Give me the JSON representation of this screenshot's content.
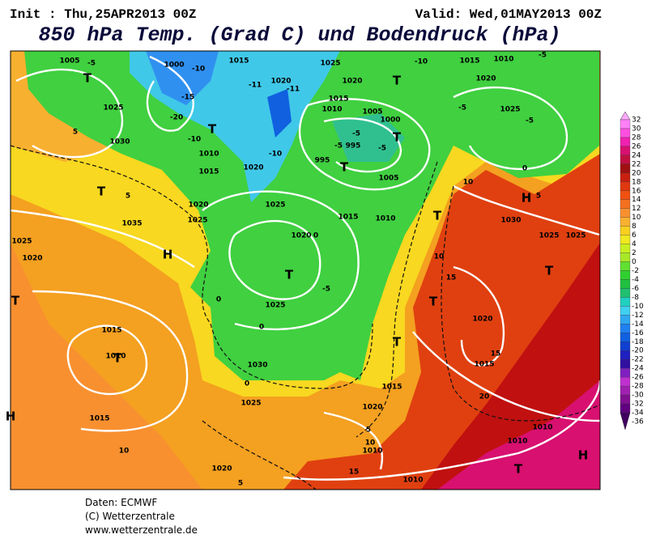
{
  "header": {
    "init": "Init : Thu,25APR2013 00Z",
    "valid": "Valid: Wed,01MAY2013 00Z",
    "title": "850 hPa Temp. (Grad C) und Bodendruck (hPa)"
  },
  "colorbar": {
    "levels": [
      32,
      30,
      28,
      26,
      24,
      22,
      20,
      18,
      16,
      14,
      12,
      10,
      8,
      6,
      4,
      2,
      0,
      -2,
      -4,
      -6,
      -8,
      -10,
      -12,
      -14,
      -16,
      -18,
      -20,
      -22,
      -24,
      -26,
      -28,
      -30,
      -32,
      -34,
      -36
    ],
    "colors": [
      "#ffa8ff",
      "#ff80f8",
      "#ff50e0",
      "#f020b0",
      "#d81070",
      "#c01040",
      "#a01010",
      "#c82010",
      "#e03810",
      "#f05010",
      "#f47020",
      "#f89030",
      "#f8b030",
      "#f8d020",
      "#f0e820",
      "#c8f020",
      "#a8e828",
      "#60e030",
      "#30d030",
      "#20c040",
      "#20c070",
      "#20d0c0",
      "#40d0f0",
      "#30a8f0",
      "#2080f0",
      "#1060e0",
      "#1040d0",
      "#2020c0",
      "#3010a0",
      "#8020c0",
      "#c030d0",
      "#a020b0",
      "#801090",
      "#600080",
      "#400060"
    ]
  },
  "map": {
    "labels": [
      "1005",
      "1000",
      "1015",
      "1020",
      "1025",
      "1015",
      "1010",
      "1020",
      "1025",
      "-10",
      "-5",
      "-15",
      "-20",
      "-10",
      "-5",
      "1025",
      "1030",
      "-10",
      "1010",
      "1015",
      "1020",
      "-10",
      "1020",
      "1015",
      "1010",
      "1005",
      "1000",
      "-5",
      "-5",
      "995",
      "-5",
      "995",
      "1005",
      "1025",
      "1020",
      "1025",
      "1035",
      "1025",
      "1020",
      "1015",
      "1010",
      "1020",
      "0",
      "1025",
      "1030",
      "1025",
      "1015",
      "1010",
      "1015",
      "1020",
      "1015",
      "1010",
      "1010",
      "1010",
      "1010",
      "1020",
      "1015",
      "1030",
      "1025",
      "1025",
      "1020",
      "-5",
      "0",
      "0",
      "0",
      "5",
      "5",
      "10",
      "10",
      "15",
      "15",
      "15",
      "10",
      "20",
      "10",
      "5",
      "0",
      "-5",
      "-5",
      "5",
      "5",
      "-11",
      "-11",
      "T",
      "T",
      "T",
      "H",
      "T",
      "T",
      "H",
      "T",
      "T",
      "T",
      "T",
      "T",
      "T",
      "T",
      "H",
      "T",
      "H",
      "T"
    ]
  },
  "footer": {
    "lines": [
      "Daten: ECMWF",
      "(C) Wetterzentrale",
      "www.wetterzentrale.de"
    ]
  }
}
